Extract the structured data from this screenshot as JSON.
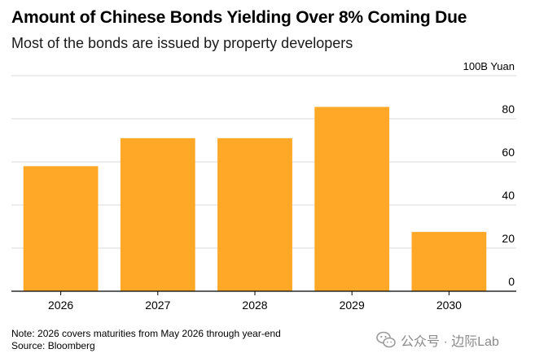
{
  "title": "Amount of Chinese Bonds Yielding Over 8% Coming Due",
  "subtitle": "Most of the bonds are issued by property developers",
  "note": "Note: 2026 covers maturities from May 2026 through year-end",
  "source": "Source: Bloomberg",
  "watermark": "公众号 · 边际Lab",
  "colors": {
    "bar": "#FFA726",
    "grid": "#d9d9d9",
    "axis": "#000000"
  },
  "chart_data": {
    "type": "bar",
    "title": "Amount of Chinese Bonds Yielding Over 8% Coming Due",
    "subtitle": "Most of the bonds are issued by property developers",
    "unit_label": "100B Yuan",
    "categories": [
      "2026",
      "2027",
      "2028",
      "2029",
      "2030"
    ],
    "values": [
      58,
      71,
      71,
      85.5,
      27.5
    ],
    "ylim": [
      0,
      100
    ],
    "yticks": [
      0,
      20,
      40,
      60,
      80
    ],
    "grid": true,
    "y_axis_side": "right",
    "legend": "none"
  }
}
